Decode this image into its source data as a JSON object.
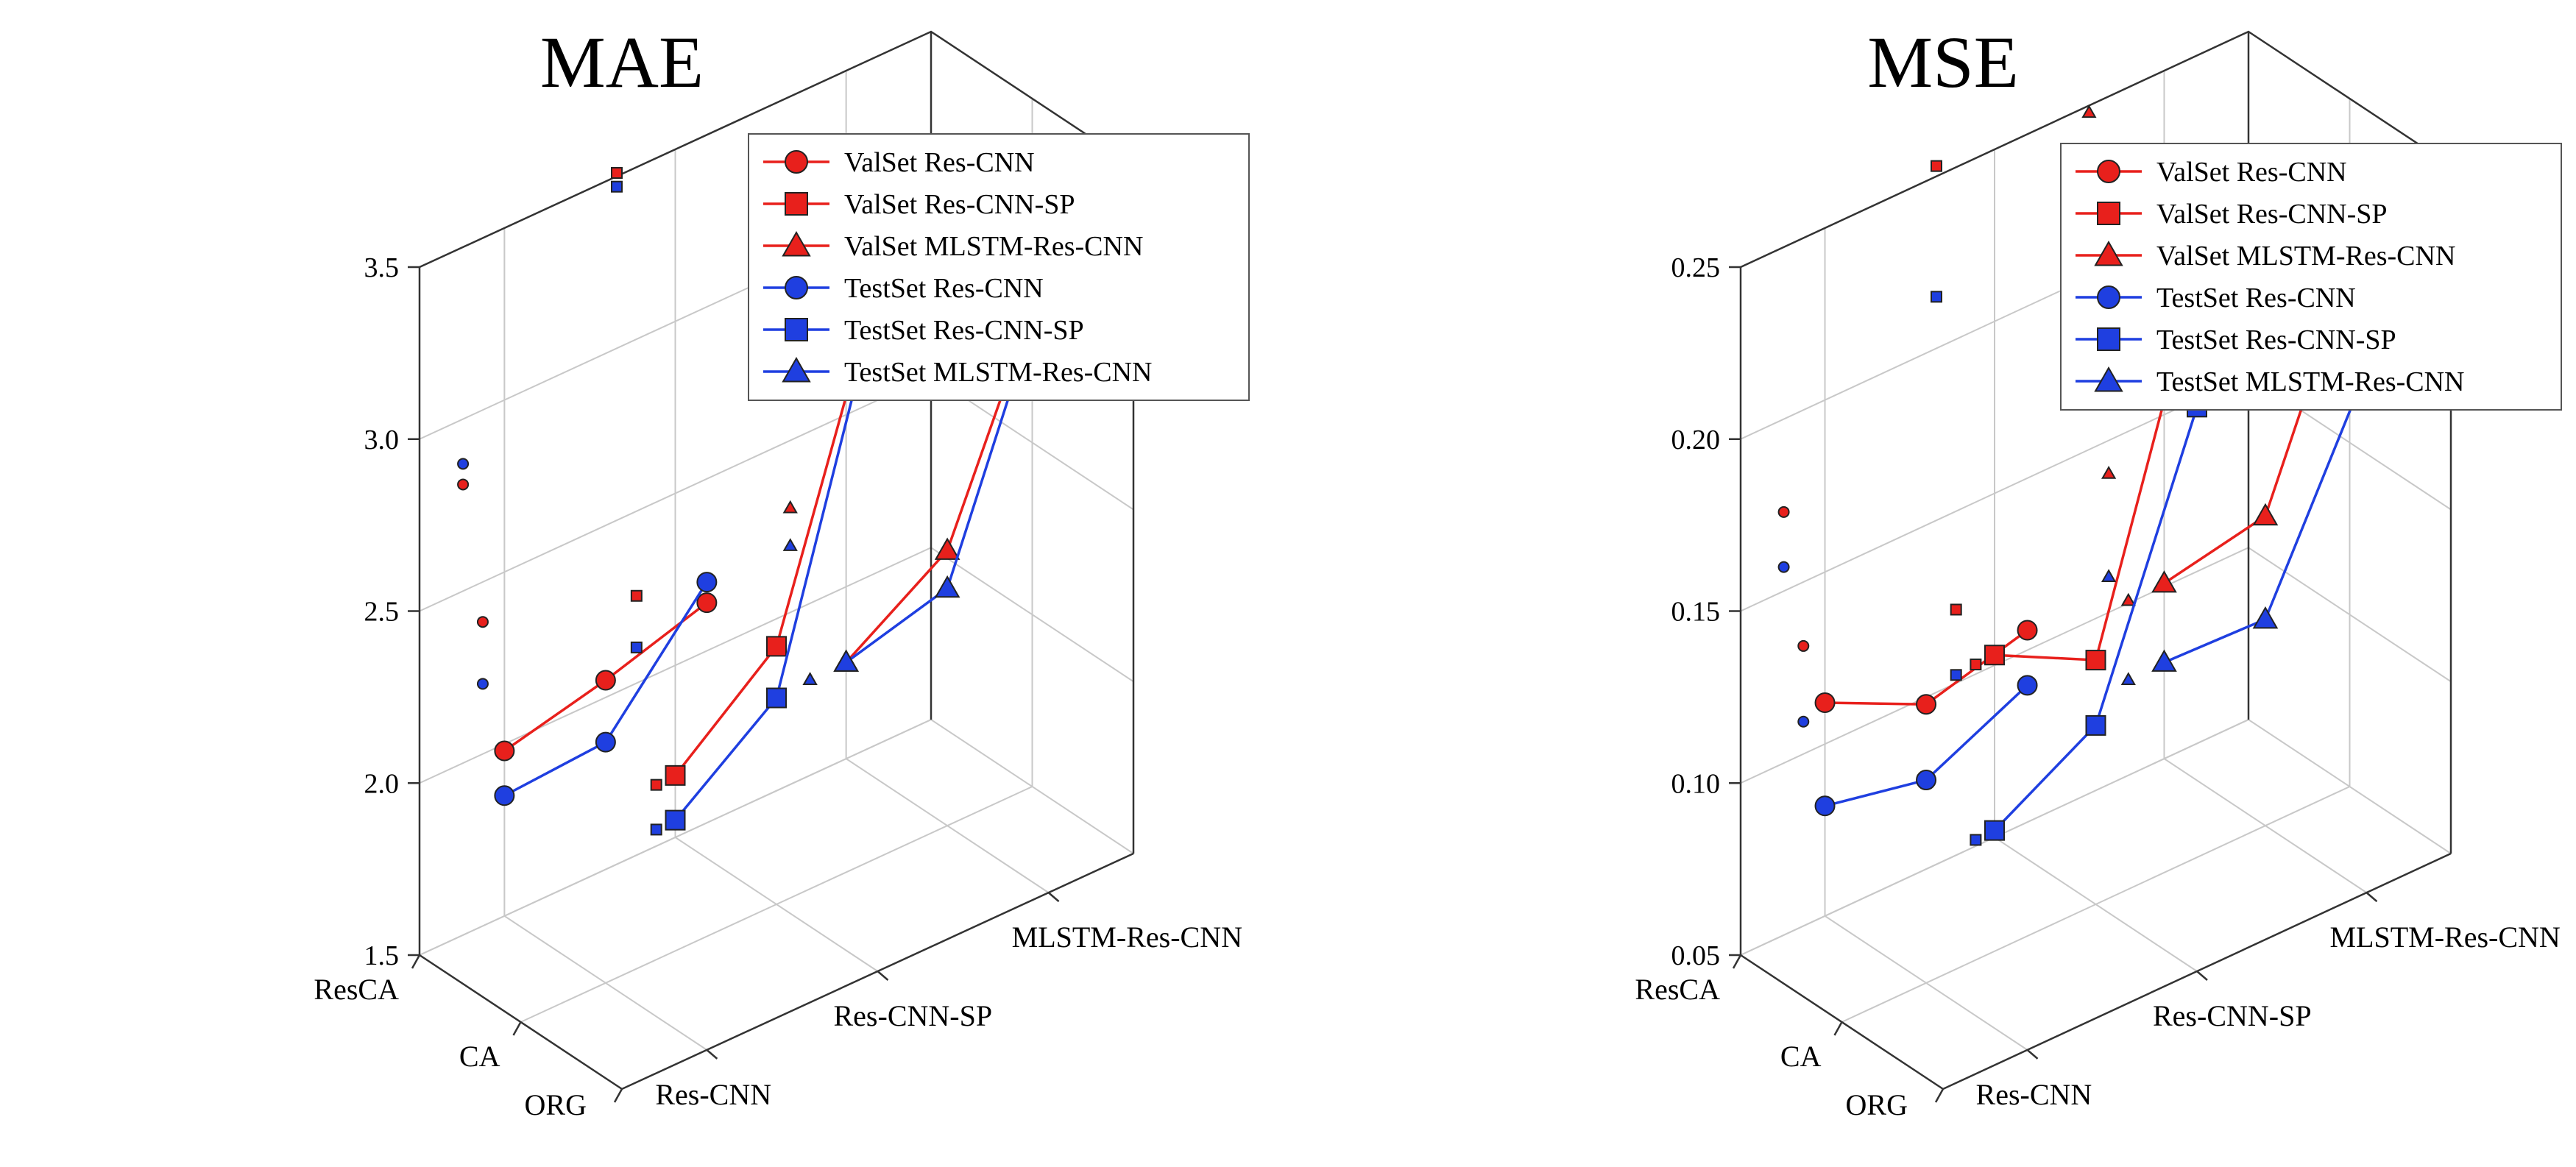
{
  "chart_data": [
    {
      "type": "line3d",
      "title": "MAE",
      "x_categories": [
        "ORG",
        "CA",
        "ResCA"
      ],
      "y_categories": [
        "Res-CNN",
        "Res-CNN-SP",
        "MLSTM-Res-CNN"
      ],
      "z_ticks": [
        "1.5",
        "2.0",
        "2.5",
        "3.0",
        "3.5"
      ],
      "zlim": [
        1.5,
        3.5
      ],
      "legend_position": "top-right",
      "series": [
        {
          "name": "ValSet Res-CNN",
          "color": "#e8201c",
          "marker": "circle",
          "model": "Res-CNN",
          "values": [
            2.8,
            2.38,
            1.98
          ]
        },
        {
          "name": "ValSet Res-CNN-SP",
          "color": "#e8201c",
          "marker": "square",
          "model": "Res-CNN-SP",
          "values": [
            3.5,
            2.25,
            1.68
          ]
        },
        {
          "name": "ValSet MLSTM-Res-CNN",
          "color": "#e8201c",
          "marker": "triangle",
          "model": "MLSTM-Res-CNN",
          "values": [
            3.33,
            2.3,
            1.78
          ]
        },
        {
          "name": "TestSet Res-CNN",
          "color": "#1f3fe0",
          "marker": "circle",
          "model": "Res-CNN",
          "values": [
            2.86,
            2.2,
            1.85
          ]
        },
        {
          "name": "TestSet Res-CNN-SP",
          "color": "#1f3fe0",
          "marker": "square",
          "model": "Res-CNN-SP",
          "values": [
            3.46,
            2.1,
            1.55
          ]
        },
        {
          "name": "TestSet MLSTM-Res-CNN",
          "color": "#1f3fe0",
          "marker": "triangle",
          "model": "MLSTM-Res-CNN",
          "values": [
            3.3,
            2.19,
            1.78
          ]
        }
      ]
    },
    {
      "type": "line3d",
      "title": "MSE",
      "x_categories": [
        "ORG",
        "CA",
        "ResCA"
      ],
      "y_categories": [
        "Res-CNN",
        "Res-CNN-SP",
        "MLSTM-Res-CNN"
      ],
      "z_ticks": [
        "0.05",
        "0.10",
        "0.15",
        "0.20",
        "0.25"
      ],
      "zlim": [
        0.05,
        0.25
      ],
      "legend_position": "top-right",
      "series": [
        {
          "name": "ValSet Res-CNN",
          "color": "#e8201c",
          "marker": "circle",
          "model": "Res-CNN",
          "values": [
            0.172,
            0.131,
            0.112
          ]
        },
        {
          "name": "ValSet Res-CNN-SP",
          "color": "#e8201c",
          "marker": "square",
          "model": "Res-CNN-SP",
          "values": [
            0.252,
            0.121,
            0.103
          ]
        },
        {
          "name": "ValSet MLSTM-Res-CNN",
          "color": "#e8201c",
          "marker": "triangle",
          "model": "MLSTM-Res-CNN",
          "values": [
            0.247,
            0.14,
            0.101
          ]
        },
        {
          "name": "TestSet Res-CNN",
          "color": "#1f3fe0",
          "marker": "circle",
          "model": "Res-CNN",
          "values": [
            0.156,
            0.109,
            0.082
          ]
        },
        {
          "name": "TestSet Res-CNN-SP",
          "color": "#1f3fe0",
          "marker": "square",
          "model": "Res-CNN-SP",
          "values": [
            0.214,
            0.102,
            0.052
          ]
        },
        {
          "name": "TestSet MLSTM-Res-CNN",
          "color": "#1f3fe0",
          "marker": "triangle",
          "model": "MLSTM-Res-CNN",
          "values": [
            0.202,
            0.11,
            0.078
          ]
        }
      ]
    }
  ]
}
